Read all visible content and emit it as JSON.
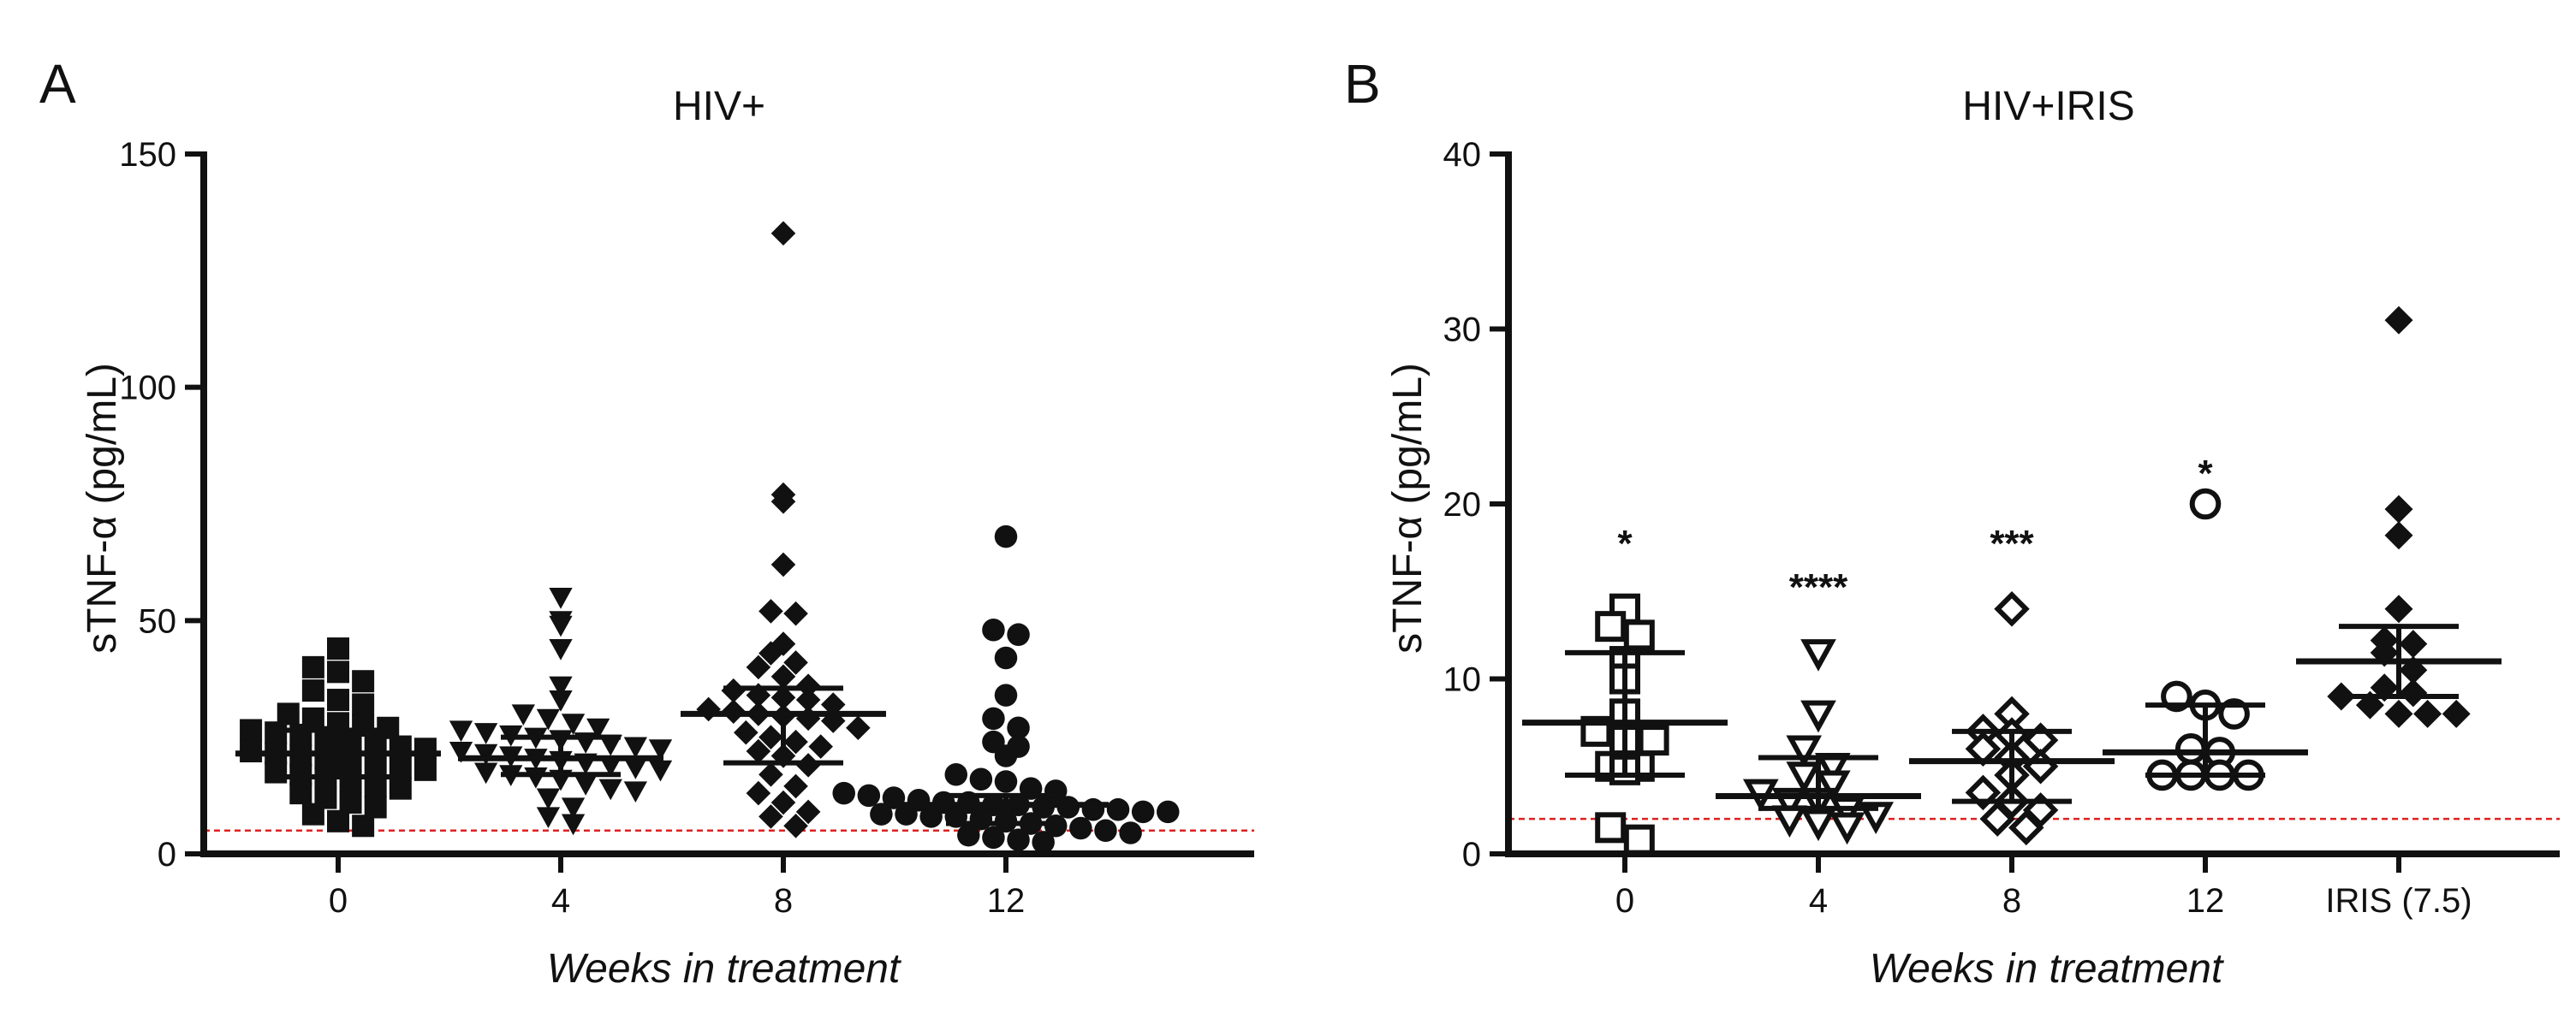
{
  "figure": {
    "panels": [
      "A",
      "B"
    ]
  },
  "chart_data": [
    {
      "panel_letter": "A",
      "type": "scatter",
      "title": "HIV+",
      "ylabel": "sTNF-α (pg/mL)",
      "xlabel": "Weeks in treatment",
      "ylim": [
        0,
        150
      ],
      "yticks": [
        0,
        50,
        100,
        150
      ],
      "categories": [
        "0",
        "4",
        "8",
        "12"
      ],
      "marker_style": [
        "filled-square",
        "filled-triangle-down",
        "filled-diamond",
        "filled-circle"
      ],
      "reference_line": {
        "value": 5,
        "color": "#e02020",
        "style": "dashed"
      },
      "groups": [
        {
          "label": "0",
          "median": 21.5,
          "q1": 16.5,
          "q3": 26.5,
          "values": [
            44,
            40,
            39,
            37,
            35,
            33,
            32,
            30,
            29,
            28,
            27.5,
            27,
            26.5,
            26,
            25.5,
            25,
            24.5,
            24,
            23,
            22.5,
            22,
            21.5,
            21,
            20.5,
            20,
            19,
            18.5,
            18,
            17.5,
            17,
            16.5,
            15.5,
            14.5,
            14,
            13,
            12,
            11,
            10,
            8.5,
            7,
            6
          ]
        },
        {
          "label": "4",
          "median": 20.5,
          "q1": 17,
          "q3": 25,
          "values": [
            55,
            50,
            49,
            44,
            36,
            33,
            30,
            29,
            28,
            27,
            26.5,
            26,
            25.5,
            25,
            24.5,
            24,
            23.5,
            23,
            22.5,
            22,
            21.5,
            21,
            20.5,
            20,
            19.5,
            19,
            18.5,
            18,
            17.5,
            17,
            16.5,
            16,
            15,
            14,
            13.5,
            12,
            10,
            8,
            6.5
          ]
        },
        {
          "label": "8",
          "median": 30,
          "q1": 19.5,
          "q3": 35.5,
          "values": [
            133,
            77,
            75.5,
            62,
            52,
            51.5,
            45,
            43,
            41,
            40,
            38,
            36,
            35,
            34,
            33.5,
            33,
            32,
            31,
            30.5,
            30,
            29.5,
            29,
            28.5,
            27,
            26,
            25,
            24,
            23,
            22,
            21,
            19,
            17,
            14.5,
            13,
            11,
            9,
            8,
            6
          ]
        },
        {
          "label": "12",
          "median": 10.5,
          "q1": 6.5,
          "q3": 12.5,
          "values": [
            68,
            48,
            47,
            42,
            34,
            29,
            27,
            24,
            23,
            21,
            17,
            16,
            15.5,
            14,
            13.5,
            13,
            12.5,
            12,
            11.5,
            11,
            11,
            10.5,
            10.5,
            10,
            10,
            9.5,
            9.5,
            9,
            9,
            8.5,
            8.5,
            8,
            8,
            7.5,
            7,
            6.5,
            6,
            5.5,
            5,
            4.5,
            4,
            3.5,
            3,
            2.5
          ]
        }
      ],
      "annotations": []
    },
    {
      "panel_letter": "B",
      "type": "scatter",
      "title": "HIV+IRIS",
      "ylabel": "sTNF-α (pg/mL)",
      "xlabel": "Weeks in treatment",
      "ylim": [
        0,
        40
      ],
      "yticks": [
        0,
        10,
        20,
        30,
        40
      ],
      "categories": [
        "0",
        "4",
        "8",
        "12",
        "IRIS (7.5)"
      ],
      "marker_style": [
        "open-square",
        "open-triangle-down",
        "open-diamond",
        "open-circle",
        "filled-diamond"
      ],
      "reference_line": {
        "value": 2,
        "color": "#e02020",
        "style": "dashed"
      },
      "groups": [
        {
          "label": "0",
          "median": 7.5,
          "q1": 4.5,
          "q3": 11.5,
          "values": [
            14,
            13,
            12.5,
            11,
            10,
            8,
            7,
            6.5,
            6.5,
            5,
            5,
            4.8,
            1.5,
            0.8
          ]
        },
        {
          "label": "4",
          "median": 3.3,
          "q1": 2.6,
          "q3": 5.5,
          "values": [
            11.5,
            8,
            6,
            5,
            4.5,
            4,
            3.5,
            3,
            3,
            2.5,
            2.2,
            2,
            1.8,
            1.6
          ]
        },
        {
          "label": "8",
          "median": 5.3,
          "q1": 3.0,
          "q3": 7.0,
          "values": [
            14,
            8,
            7,
            6.8,
            6.5,
            6,
            5.5,
            5,
            4.5,
            3.5,
            3,
            2.5,
            2,
            1.5
          ]
        },
        {
          "label": "12",
          "median": 5.8,
          "q1": 4.5,
          "q3": 8.5,
          "values": [
            20,
            9,
            8.5,
            8,
            6,
            5.8,
            4.5,
            4.5,
            4.5,
            4.5
          ]
        },
        {
          "label": "IRIS (7.5)",
          "median": 11,
          "q1": 9,
          "q3": 13,
          "values": [
            30.5,
            19.7,
            18.2,
            14,
            12.2,
            12,
            11.5,
            10.5,
            9.5,
            9.2,
            9,
            8.5,
            8,
            8,
            8
          ]
        }
      ],
      "annotations": [
        {
          "category": "0",
          "text": "*",
          "y": 18
        },
        {
          "category": "4",
          "text": "****",
          "y": 15.5
        },
        {
          "category": "8",
          "text": "***",
          "y": 18
        },
        {
          "category": "12",
          "text": "*",
          "y": 22
        }
      ]
    }
  ]
}
